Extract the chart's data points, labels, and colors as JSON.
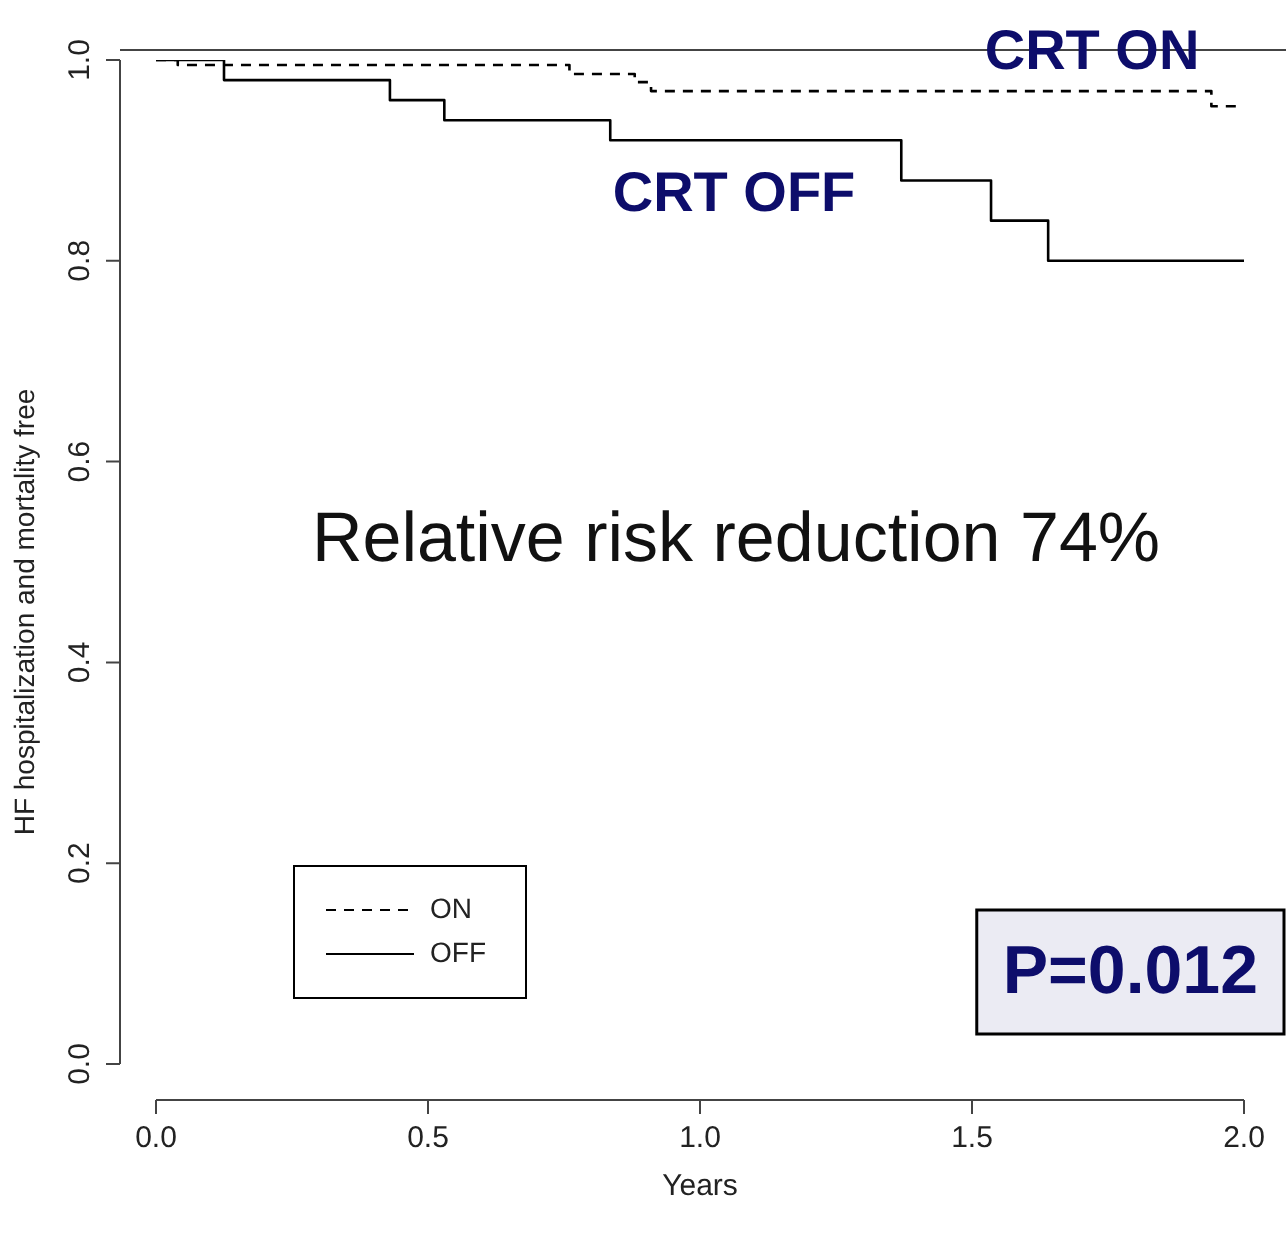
{
  "chart_data": {
    "type": "step",
    "xlabel": "Years",
    "ylabel": "HF hospitalization and mortality free",
    "xlim": [
      0,
      2
    ],
    "xticks": [
      {
        "value": 0,
        "label": "0.0"
      },
      {
        "value": 0.5,
        "label": "0.5"
      },
      {
        "value": 1,
        "label": "1.0"
      },
      {
        "value": 1.5,
        "label": "1.5"
      },
      {
        "value": 2,
        "label": "2.0"
      }
    ],
    "ylim": [
      0,
      1
    ],
    "yticks": [
      {
        "value": 0,
        "label": "0.0"
      },
      {
        "value": 0.2,
        "label": "0.2"
      },
      {
        "value": 0.4,
        "label": "0.4"
      },
      {
        "value": 0.6,
        "label": "0.6"
      },
      {
        "value": 0.8,
        "label": "0.8"
      },
      {
        "value": 1,
        "label": "1.0"
      }
    ],
    "series": [
      {
        "name": "ON",
        "color": "#000000",
        "line_style": "dashed",
        "x": [
          0,
          0.04,
          0.76,
          0.88,
          0.91,
          1.94,
          1.99
        ],
        "values": [
          1,
          0.995,
          0.986,
          0.978,
          0.969,
          0.954,
          0.954
        ]
      },
      {
        "name": "OFF",
        "color": "#000000",
        "line_style": "solid",
        "x": [
          0,
          0.125,
          0.43,
          0.53,
          0.835,
          1.37,
          1.535,
          1.64,
          2.0
        ],
        "values": [
          1,
          0.98,
          0.96,
          0.94,
          0.92,
          0.88,
          0.84,
          0.8,
          0.8
        ]
      }
    ],
    "legend": "bottom left",
    "marker": "none",
    "annotations": [
      "CRT ON",
      "CRT OFF",
      "Relative risk reduction 74%",
      "P=0.012"
    ]
  }
}
